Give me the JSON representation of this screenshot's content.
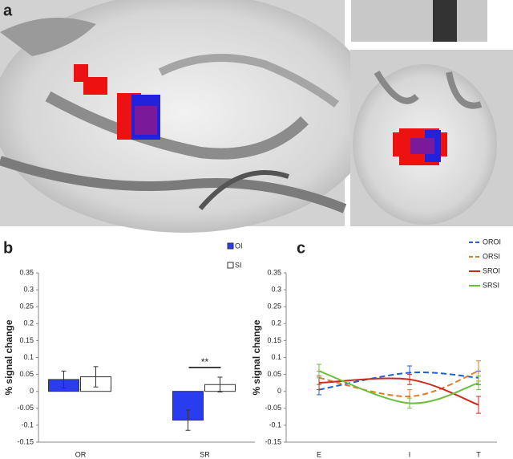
{
  "figure_panel": {
    "label": "a"
  },
  "chart_data": [
    {
      "type": "bar",
      "panel_label": "b",
      "y_label": "% signal change",
      "categories": [
        "OR",
        "SR"
      ],
      "series": [
        {
          "name": "OI",
          "color": "#2a3cf0",
          "values": [
            0.035,
            -0.085
          ],
          "errors": [
            0.025,
            0.03
          ]
        },
        {
          "name": "SI",
          "color": "#ffffff",
          "values": [
            0.043,
            0.02
          ],
          "errors": [
            0.03,
            0.022
          ]
        }
      ],
      "annotations": [
        {
          "text": "**"
        }
      ],
      "ylim": [
        -0.15,
        0.35
      ],
      "yticks": [
        -0.15,
        -0.1,
        -0.05,
        0,
        0.05,
        0.1,
        0.15,
        0.2,
        0.25,
        0.3,
        0.35
      ],
      "legend": "top-right"
    },
    {
      "type": "line",
      "panel_label": "c",
      "y_label": "% signal change",
      "categories": [
        "E",
        "I",
        "T"
      ],
      "series": [
        {
          "name": "OROI",
          "color": "#1f5fd8",
          "dashed": true,
          "values": [
            0.005,
            0.055,
            0.04
          ],
          "errors": [
            0.015,
            0.02,
            0.02
          ]
        },
        {
          "name": "ORSI",
          "color": "#e07b2a",
          "dashed": true,
          "values": [
            0.04,
            -0.015,
            0.06
          ],
          "errors": [
            0.02,
            0.02,
            0.03
          ]
        },
        {
          "name": "SROI",
          "color": "#cc2a1e",
          "dashed": false,
          "values": [
            0.025,
            0.035,
            -0.04
          ],
          "errors": [
            0.02,
            0.015,
            0.025
          ]
        },
        {
          "name": "SRSI",
          "color": "#6dbe3c",
          "dashed": false,
          "values": [
            0.06,
            -0.035,
            0.025
          ],
          "errors": [
            0.02,
            0.015,
            0.02
          ]
        }
      ],
      "ylim": [
        -0.15,
        0.35
      ],
      "yticks": [
        -0.15,
        -0.1,
        -0.05,
        0,
        0.05,
        0.1,
        0.15,
        0.2,
        0.25,
        0.3,
        0.35
      ],
      "legend": "top-right"
    }
  ]
}
